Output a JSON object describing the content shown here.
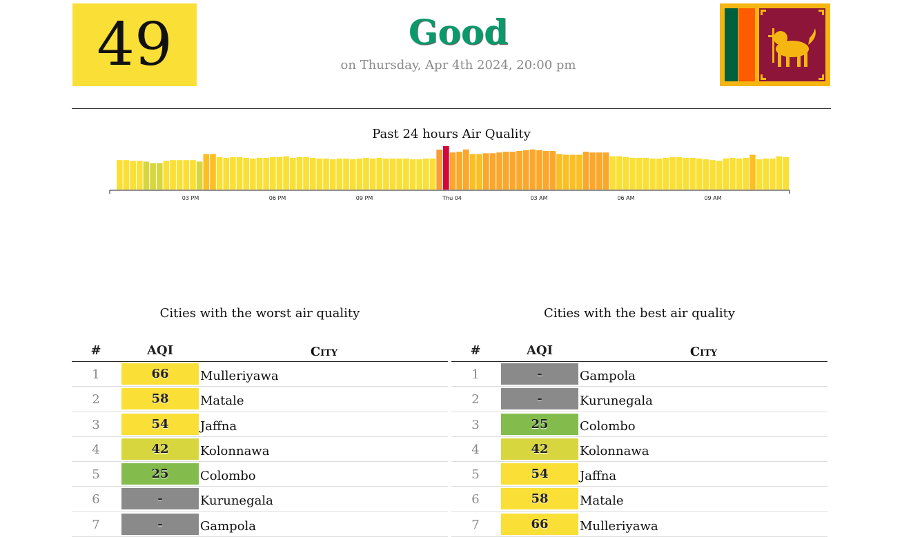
{
  "header": {
    "aqi": "49",
    "status": "Good",
    "datetime": "on Thursday, Apr 4th 2024, 20:00 pm",
    "status_color": "#099a6c",
    "aqi_box_color": "#fadf36"
  },
  "chart_data": {
    "type": "bar",
    "title": "Past 24 hours Air Quality",
    "xticks": [
      "03 PM",
      "06 PM",
      "09 PM",
      "Thu 04",
      "03 AM",
      "06 AM",
      "09 AM"
    ],
    "values": [
      48,
      48,
      47,
      47,
      46,
      44,
      44,
      47,
      48,
      48,
      48,
      48,
      46,
      56,
      56,
      52,
      51,
      52,
      52,
      51,
      50,
      51,
      51,
      52,
      52,
      53,
      51,
      52,
      52,
      51,
      50,
      50,
      49,
      50,
      50,
      49,
      50,
      51,
      50,
      51,
      50,
      50,
      50,
      50,
      49,
      49,
      50,
      50,
      51,
      55,
      58,
      59,
      62,
      56,
      56,
      57,
      57,
      58,
      59,
      59,
      60,
      61,
      62,
      61,
      60,
      60,
      56,
      55,
      55,
      55,
      59,
      58,
      58,
      58,
      53,
      53,
      52,
      51,
      51,
      51,
      50,
      50,
      51,
      52,
      52,
      51,
      51,
      50,
      49,
      48,
      47,
      50,
      51,
      50,
      51,
      55,
      49,
      50,
      50,
      53,
      52
    ],
    "bar_colors": [
      "#d8d63f",
      "#fadf36",
      "#fbbf24",
      "#fba72b",
      "#dc143c"
    ],
    "highlight": [
      {
        "index": 48,
        "color": "#fb9a38"
      },
      {
        "index": 49,
        "color": "#d3073b"
      }
    ]
  },
  "worst": {
    "title": "Cities with the worst air quality",
    "headers": {
      "rank": "#",
      "aqi": "AQI",
      "city": "City"
    },
    "rows": [
      {
        "rank": "1",
        "aqi": "66",
        "city": "Mulleriyawa",
        "color": "#fadf36"
      },
      {
        "rank": "2",
        "aqi": "58",
        "city": "Matale",
        "color": "#fadf36"
      },
      {
        "rank": "3",
        "aqi": "54",
        "city": "Jaffna",
        "color": "#fadf36"
      },
      {
        "rank": "4",
        "aqi": "42",
        "city": "Kolonnawa",
        "color": "#d8d63f"
      },
      {
        "rank": "5",
        "aqi": "25",
        "city": "Colombo",
        "color": "#83bc4d"
      },
      {
        "rank": "6",
        "aqi": "-",
        "city": "Kurunegala",
        "color": "#8a8a8a"
      },
      {
        "rank": "7",
        "aqi": "-",
        "city": "Gampola",
        "color": "#8a8a8a"
      }
    ]
  },
  "best": {
    "title": "Cities with the best air quality",
    "headers": {
      "rank": "#",
      "aqi": "AQI",
      "city": "City"
    },
    "rows": [
      {
        "rank": "1",
        "aqi": "-",
        "city": "Gampola",
        "color": "#8a8a8a"
      },
      {
        "rank": "2",
        "aqi": "-",
        "city": "Kurunegala",
        "color": "#8a8a8a"
      },
      {
        "rank": "3",
        "aqi": "25",
        "city": "Colombo",
        "color": "#83bc4d"
      },
      {
        "rank": "4",
        "aqi": "42",
        "city": "Kolonnawa",
        "color": "#d8d63f"
      },
      {
        "rank": "5",
        "aqi": "54",
        "city": "Jaffna",
        "color": "#fadf36"
      },
      {
        "rank": "6",
        "aqi": "58",
        "city": "Matale",
        "color": "#fadf36"
      },
      {
        "rank": "7",
        "aqi": "66",
        "city": "Mulleriyawa",
        "color": "#fadf36"
      }
    ]
  }
}
